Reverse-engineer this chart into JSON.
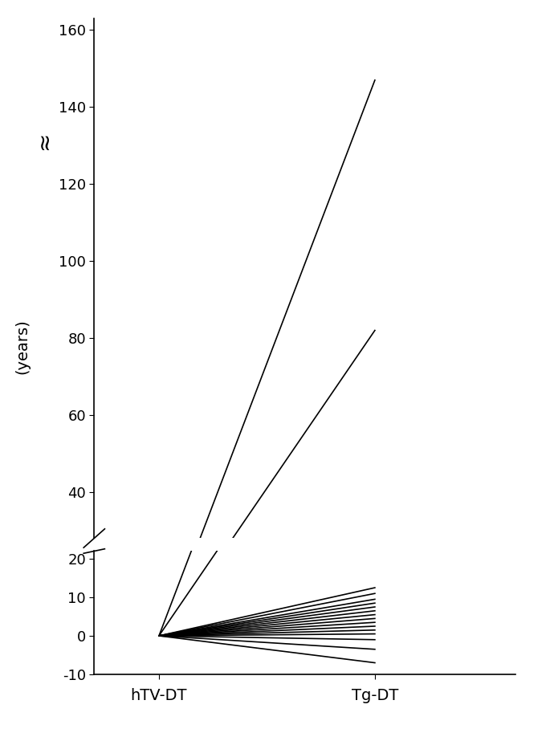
{
  "x_labels": [
    "hTV-DT",
    "Tg-DT"
  ],
  "ylabel": "(years)",
  "yticks_lower": [
    -10,
    0,
    10,
    20
  ],
  "yticks_upper": [
    40,
    60,
    80,
    100,
    120,
    140,
    160
  ],
  "ylim_lower_min": -10,
  "ylim_lower_max": 22,
  "ylim_upper_min": 28,
  "ylim_upper_max": 163,
  "line_color": "#000000",
  "line_width": 1.2,
  "background_color": "#ffffff",
  "lines": [
    [
      0.0,
      147.0
    ],
    [
      0.0,
      82.0
    ],
    [
      0.0,
      12.5
    ],
    [
      0.0,
      11.0
    ],
    [
      0.0,
      9.5
    ],
    [
      0.0,
      8.5
    ],
    [
      0.0,
      7.5
    ],
    [
      0.0,
      6.5
    ],
    [
      0.0,
      5.5
    ],
    [
      0.0,
      4.5
    ],
    [
      0.0,
      3.5
    ],
    [
      0.0,
      2.5
    ],
    [
      0.0,
      1.5
    ],
    [
      0.0,
      0.5
    ],
    [
      0.0,
      -1.0
    ],
    [
      0.0,
      -3.5
    ],
    [
      0.0,
      -7.0
    ]
  ]
}
